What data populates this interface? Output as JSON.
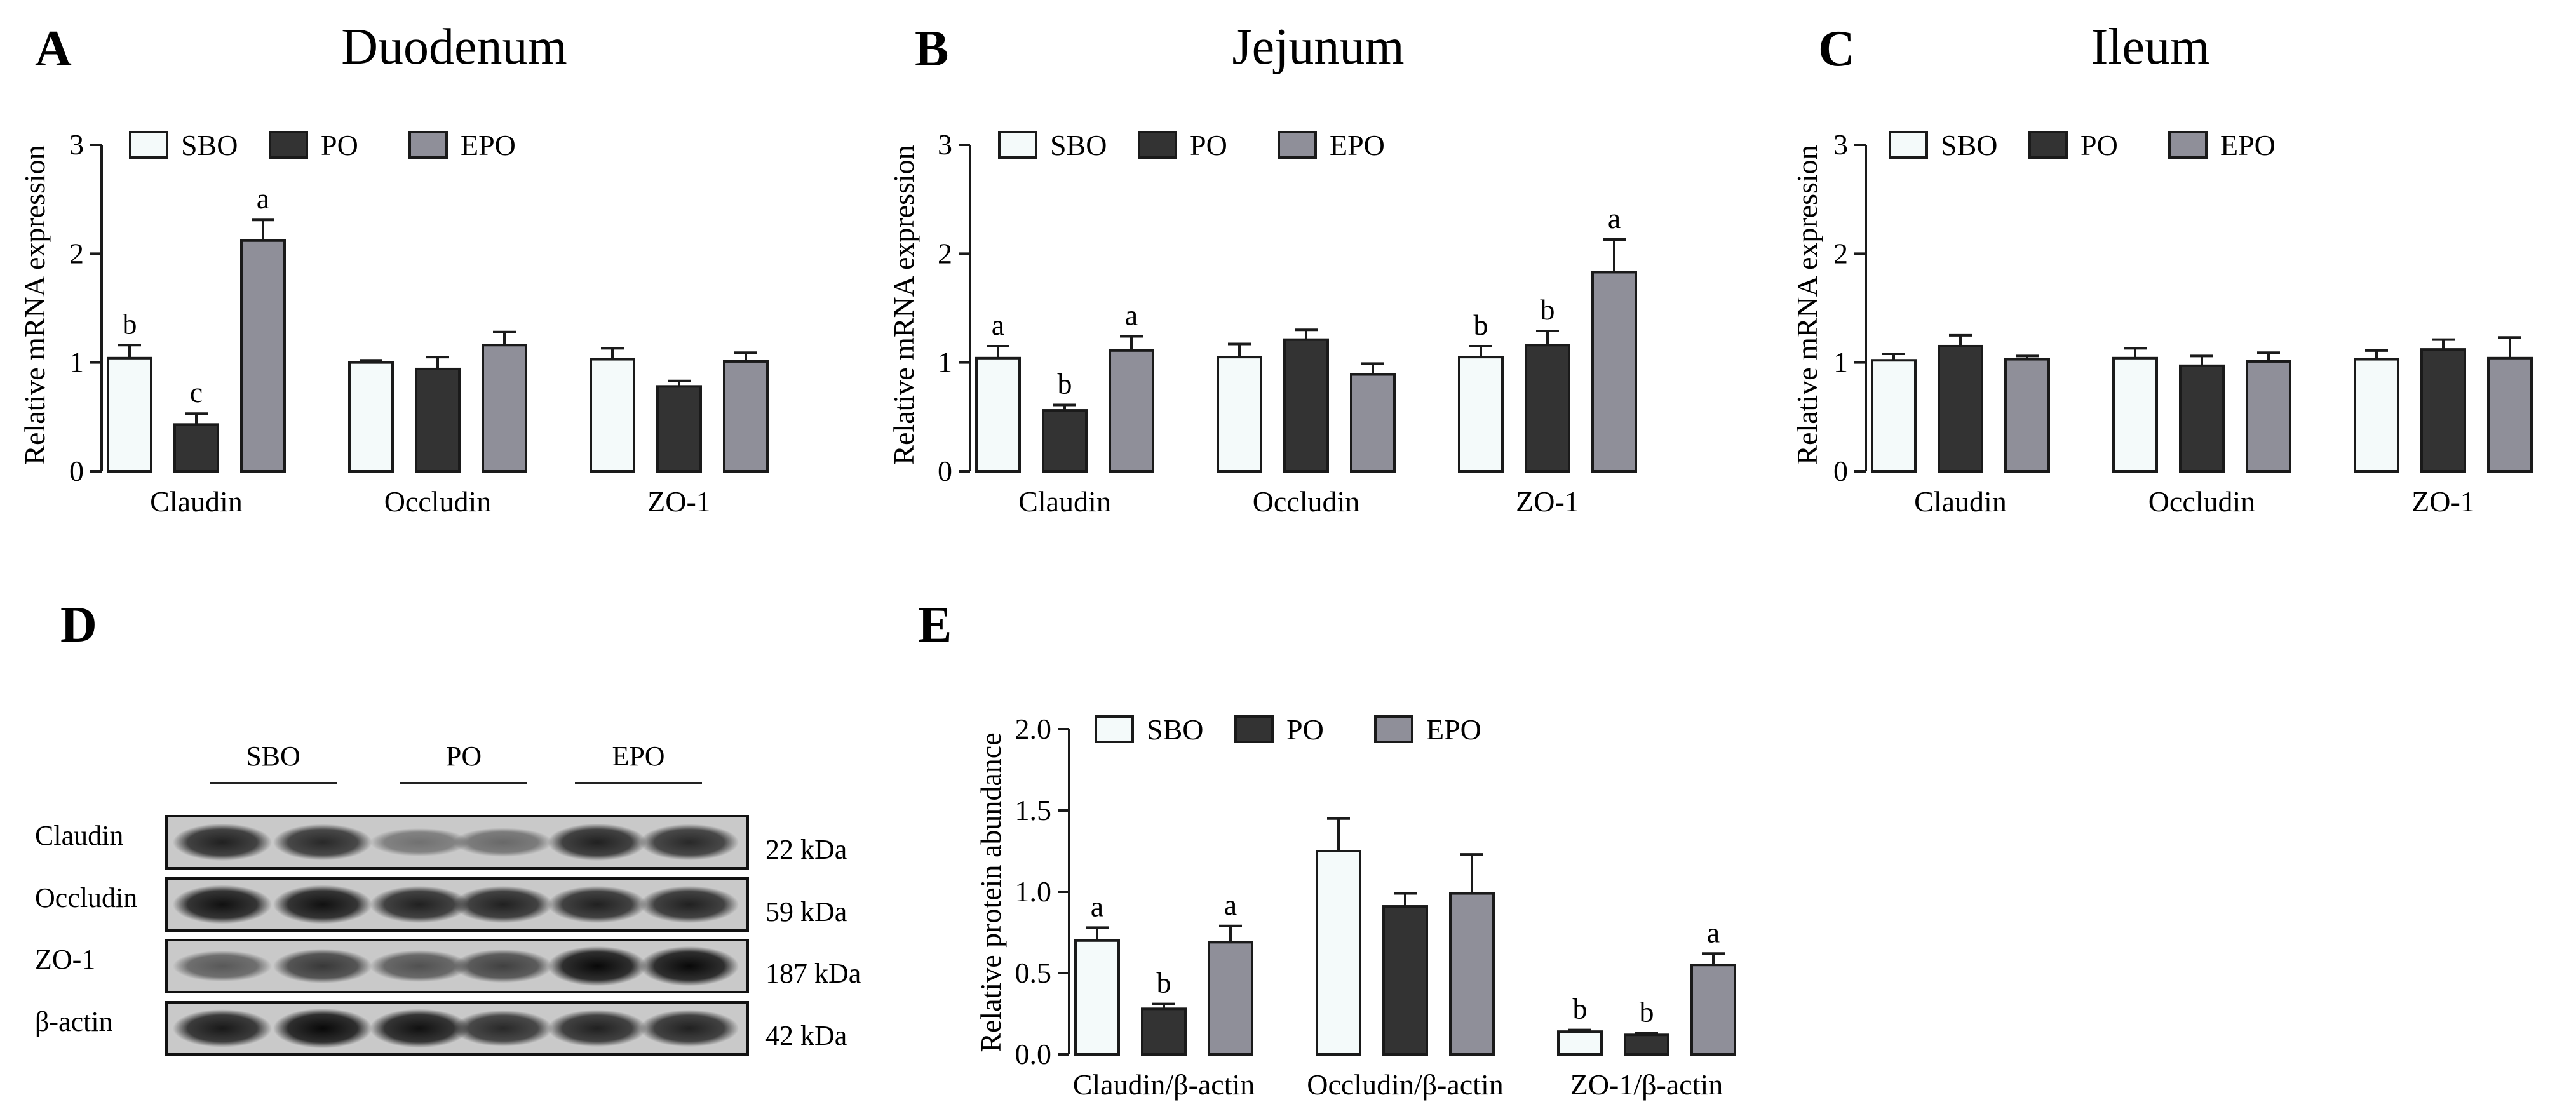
{
  "chart_data": [
    {
      "type": "bar",
      "panel": "A",
      "title": "Duodenum",
      "xlabel": "",
      "ylabel": "Relative mRNA expression",
      "ylim": [
        0,
        3
      ],
      "yticks": [
        "0",
        "1",
        "2",
        "3"
      ],
      "categories": [
        "Claudin",
        "Occludin",
        "ZO-1"
      ],
      "series": [
        {
          "name": "SBO",
          "values": [
            1.04,
            1.0,
            1.03
          ],
          "errors": [
            0.12,
            0.02,
            0.1
          ],
          "labels": [
            "b",
            "",
            ""
          ]
        },
        {
          "name": "PO",
          "values": [
            0.43,
            0.94,
            0.78
          ],
          "errors": [
            0.1,
            0.11,
            0.05
          ],
          "labels": [
            "c",
            "",
            ""
          ]
        },
        {
          "name": "EPO",
          "values": [
            2.12,
            1.16,
            1.01
          ],
          "errors": [
            0.19,
            0.12,
            0.08
          ],
          "labels": [
            "a",
            "",
            ""
          ]
        }
      ],
      "legend_position": "top-left"
    },
    {
      "type": "bar",
      "panel": "B",
      "title": "Jejunum",
      "xlabel": "",
      "ylabel": "Relative mRNA expression",
      "ylim": [
        0,
        3
      ],
      "yticks": [
        "0",
        "1",
        "2",
        "3"
      ],
      "categories": [
        "Claudin",
        "Occludin",
        "ZO-1"
      ],
      "series": [
        {
          "name": "SBO",
          "values": [
            1.04,
            1.05,
            1.05
          ],
          "errors": [
            0.11,
            0.12,
            0.1
          ],
          "labels": [
            "a",
            "",
            "b"
          ]
        },
        {
          "name": "PO",
          "values": [
            0.56,
            1.21,
            1.16
          ],
          "errors": [
            0.05,
            0.09,
            0.13
          ],
          "labels": [
            "b",
            "",
            "b"
          ]
        },
        {
          "name": "EPO",
          "values": [
            1.11,
            0.89,
            1.83
          ],
          "errors": [
            0.13,
            0.1,
            0.3
          ],
          "labels": [
            "a",
            "",
            "a"
          ]
        }
      ],
      "legend_position": "top-left"
    },
    {
      "type": "bar",
      "panel": "C",
      "title": "Ileum",
      "xlabel": "",
      "ylabel": "Relative mRNA expression",
      "ylim": [
        0,
        3
      ],
      "yticks": [
        "0",
        "1",
        "2",
        "3"
      ],
      "categories": [
        "Claudin",
        "Occludin",
        "ZO-1"
      ],
      "series": [
        {
          "name": "SBO",
          "values": [
            1.02,
            1.04,
            1.03
          ],
          "errors": [
            0.06,
            0.09,
            0.08
          ],
          "labels": [
            "",
            "",
            ""
          ]
        },
        {
          "name": "PO",
          "values": [
            1.15,
            0.97,
            1.12
          ],
          "errors": [
            0.1,
            0.09,
            0.09
          ],
          "labels": [
            "",
            "",
            ""
          ]
        },
        {
          "name": "EPO",
          "values": [
            1.03,
            1.01,
            1.04
          ],
          "errors": [
            0.03,
            0.08,
            0.19
          ],
          "labels": [
            "",
            "",
            ""
          ]
        }
      ],
      "legend_position": "top-left"
    },
    {
      "type": "bar",
      "panel": "E",
      "title": "",
      "xlabel": "",
      "ylabel": "Relative protein abundance",
      "ylim": [
        0,
        2.0
      ],
      "yticks": [
        "0.0",
        "0.5",
        "1.0",
        "1.5",
        "2.0"
      ],
      "categories": [
        "Claudin/β-actin",
        "Occludin/β-actin",
        "ZO-1/β-actin"
      ],
      "series": [
        {
          "name": "SBO",
          "values": [
            0.7,
            1.25,
            0.14
          ],
          "errors": [
            0.08,
            0.2,
            0.01
          ],
          "labels": [
            "a",
            "",
            "b"
          ]
        },
        {
          "name": "PO",
          "values": [
            0.28,
            0.91,
            0.12
          ],
          "errors": [
            0.03,
            0.08,
            0.01
          ],
          "labels": [
            "b",
            "",
            "b"
          ]
        },
        {
          "name": "EPO",
          "values": [
            0.69,
            0.99,
            0.55
          ],
          "errors": [
            0.1,
            0.24,
            0.07
          ],
          "labels": [
            "a",
            "",
            "a"
          ]
        }
      ],
      "legend_position": "top-left"
    }
  ],
  "colors": {
    "SBO": "#f4fafa",
    "PO": "#333333",
    "EPO": "#8f8f99",
    "stroke": "#1a1a1a"
  },
  "blot": {
    "panel": "D",
    "groups": [
      "SBO",
      "PO",
      "EPO"
    ],
    "rows": [
      {
        "label": "Claudin",
        "kda": "22 kDa",
        "intensity": [
          0.8,
          0.75,
          0.3,
          0.35,
          0.8,
          0.75
        ]
      },
      {
        "label": "Occludin",
        "kda": "59 kDa",
        "intensity": [
          0.9,
          0.9,
          0.8,
          0.8,
          0.8,
          0.8
        ]
      },
      {
        "label": "ZO-1",
        "kda": "187 kDa",
        "intensity": [
          0.45,
          0.65,
          0.5,
          0.6,
          0.95,
          0.95
        ]
      },
      {
        "label": "β-actin",
        "kda": "42 kDa",
        "intensity": [
          0.85,
          0.95,
          0.9,
          0.75,
          0.8,
          0.8
        ]
      }
    ]
  }
}
